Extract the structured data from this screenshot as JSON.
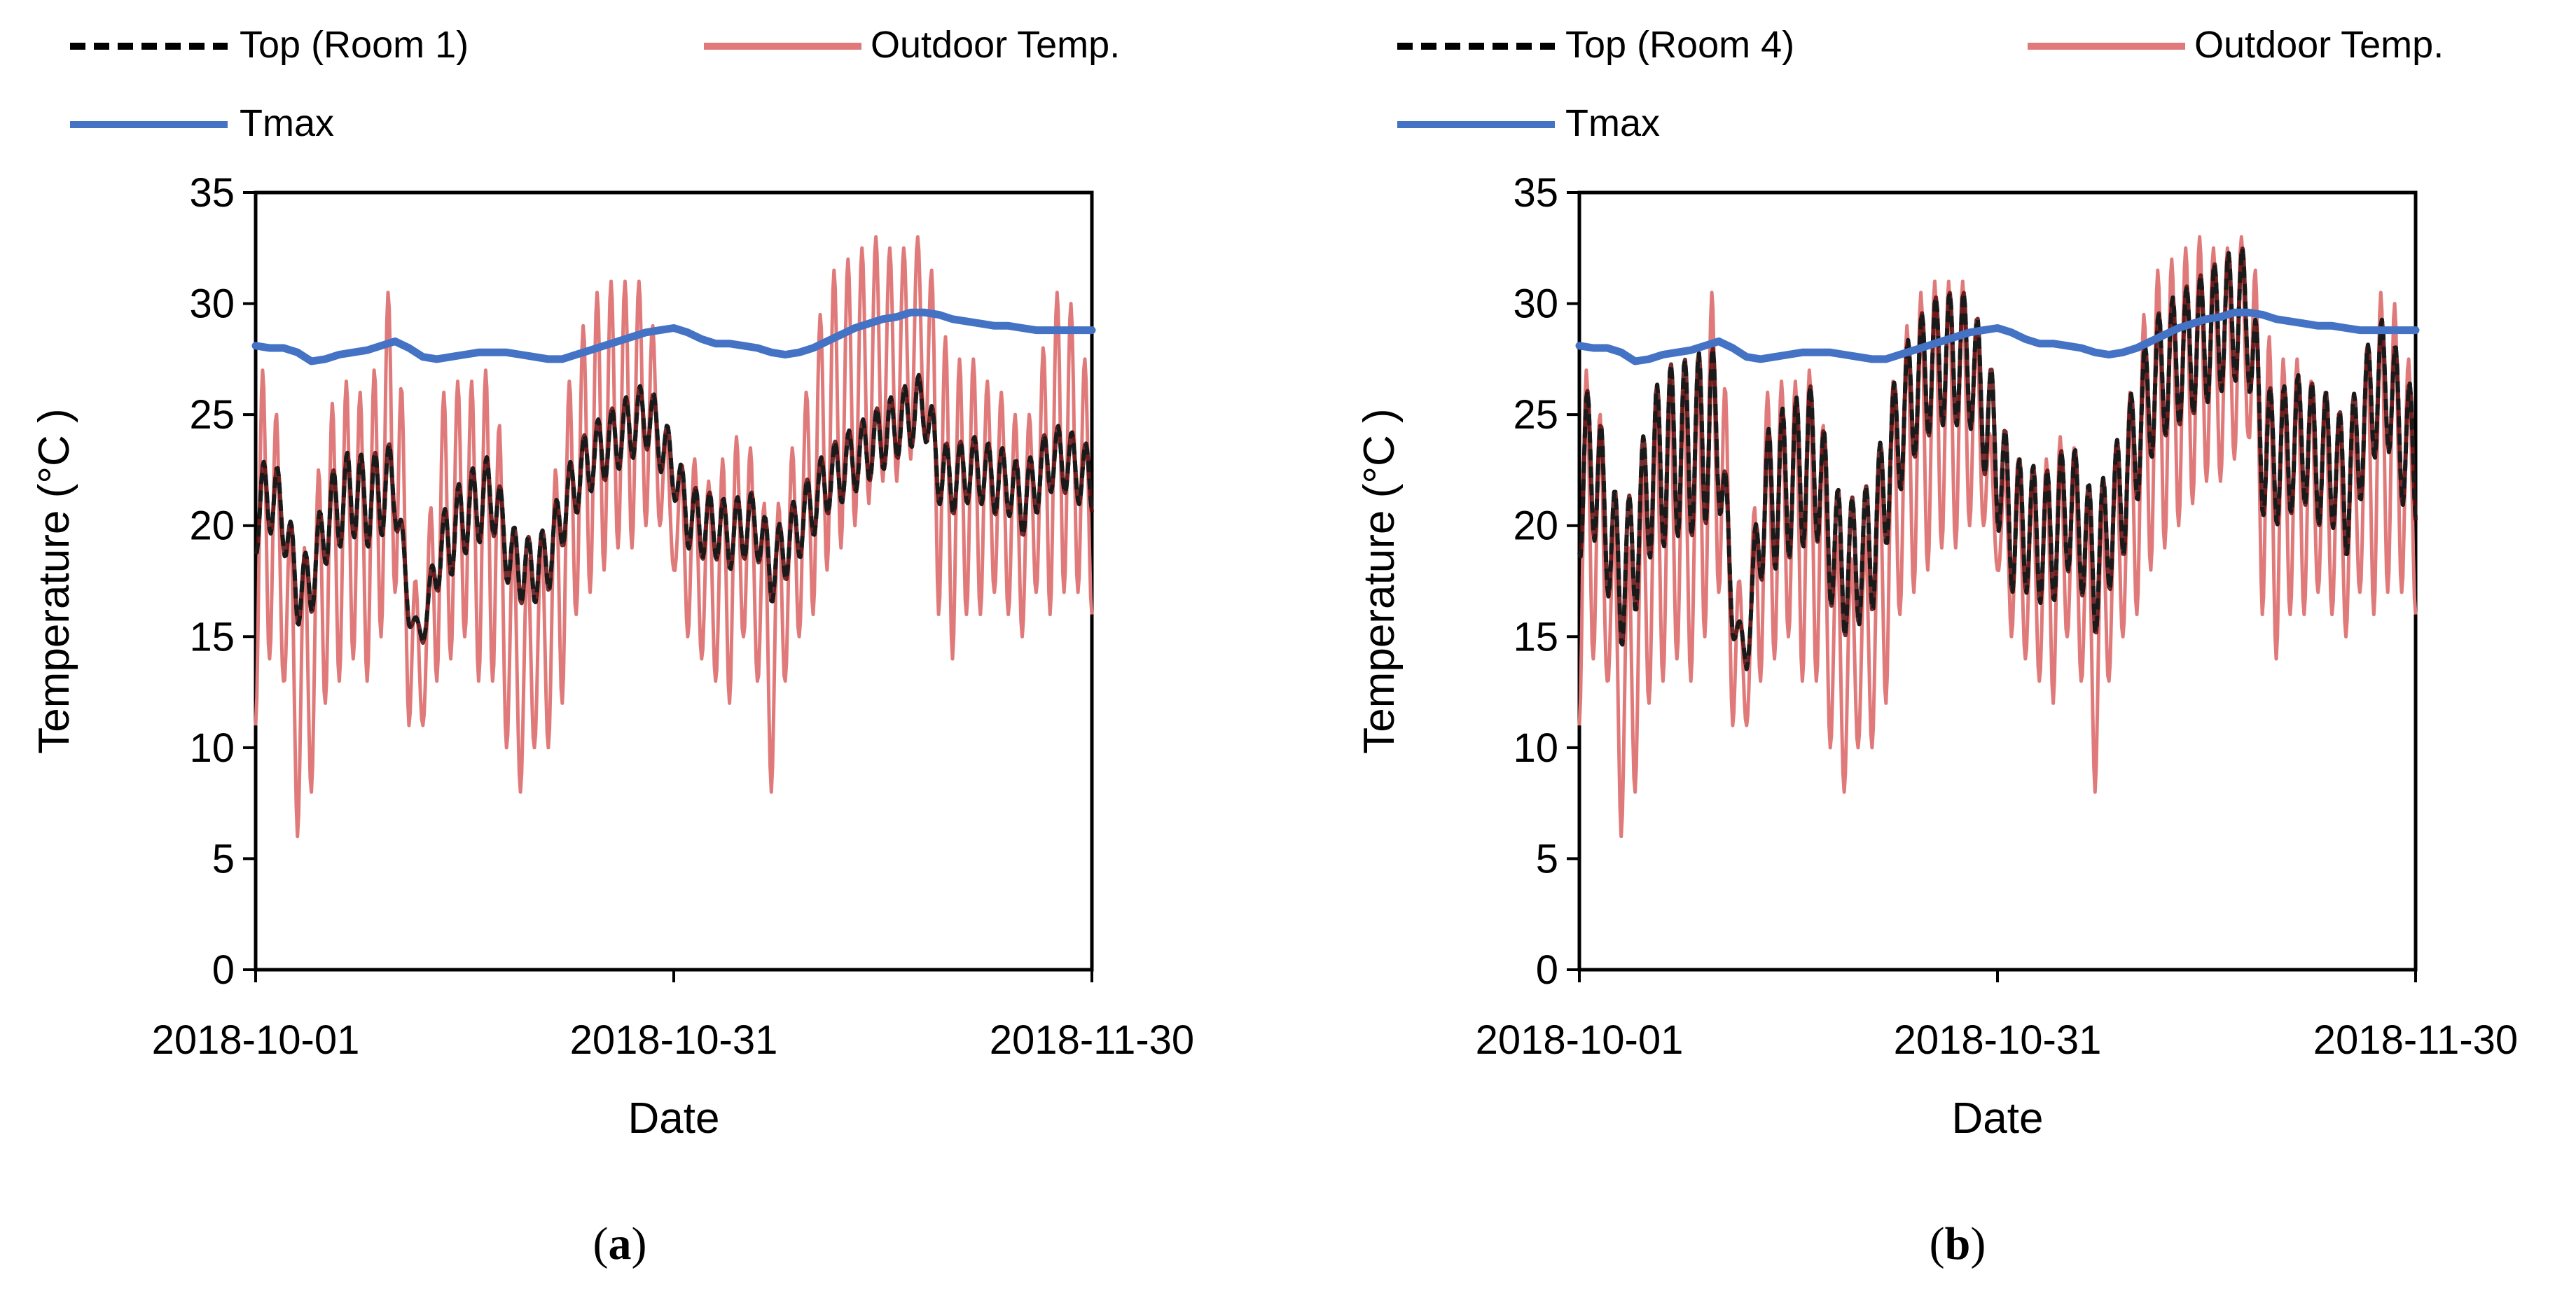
{
  "colors": {
    "top": "#1a1a1a",
    "top_dark": "#5a0a0a",
    "outdoor": "#e07a7a",
    "tmax": "#4472c4",
    "axis": "#000000"
  },
  "chart_data": [
    {
      "type": "line",
      "panel_label": "a",
      "xlabel": "Date",
      "ylabel": "Temperature (°C )",
      "ylim": [
        0,
        35
      ],
      "yticks": [
        "0",
        "5",
        "10",
        "15",
        "20",
        "25",
        "30",
        "35"
      ],
      "xlim_days": [
        0,
        60
      ],
      "xticks": [
        {
          "day": 0,
          "label": "2018-10-01"
        },
        {
          "day": 30,
          "label": "2018-10-31"
        },
        {
          "day": 60,
          "label": "2018-11-30"
        }
      ],
      "legend": {
        "placement": "top",
        "entries": [
          {
            "key": "top",
            "label": "Top (Room 1)"
          },
          {
            "key": "outdoor",
            "label": "Outdoor Temp."
          },
          {
            "key": "tmax",
            "label": "Tmax"
          }
        ]
      },
      "series": [
        {
          "name": "Top (Room 1)",
          "key": "top",
          "style": "dashed",
          "x_days": [
            0,
            1,
            2,
            3,
            4,
            5,
            6,
            7,
            8,
            9,
            10,
            11,
            12,
            13,
            14,
            15,
            16,
            17,
            18,
            19,
            20,
            21,
            22,
            23,
            24,
            25,
            26,
            27,
            28,
            29,
            30,
            31,
            32,
            33,
            34,
            35,
            36,
            37,
            38,
            39,
            40,
            41,
            42,
            43,
            44,
            45,
            46,
            47,
            48,
            49,
            50,
            51,
            52,
            53,
            54,
            55,
            56,
            57,
            58,
            59,
            60
          ],
          "mean": [
            20.5,
            21.5,
            20.5,
            17.0,
            17.5,
            20.0,
            21.0,
            21.5,
            21.0,
            21.5,
            22.0,
            16.0,
            15.0,
            18.5,
            19.5,
            20.5,
            21.0,
            21.5,
            19.0,
            18.0,
            18.0,
            18.5,
            20.5,
            22.0,
            23.0,
            23.5,
            24.0,
            24.5,
            25.0,
            24.0,
            22.5,
            20.5,
            20.0,
            20.0,
            19.5,
            20.0,
            20.0,
            18.0,
            19.0,
            20.0,
            21.0,
            22.0,
            22.5,
            23.0,
            23.5,
            24.0,
            24.5,
            25.0,
            25.5,
            22.5,
            22.0,
            22.5,
            22.5,
            22.0,
            22.0,
            21.0,
            22.0,
            23.0,
            23.0,
            22.5,
            22.0
          ],
          "amplitude": [
            1.8,
            1.8,
            1.6,
            1.5,
            1.5,
            1.8,
            2.0,
            2.0,
            2.0,
            2.0,
            1.8,
            0.5,
            0.3,
            1.5,
            1.8,
            1.8,
            1.8,
            1.8,
            1.5,
            1.5,
            1.5,
            1.5,
            1.5,
            1.5,
            1.5,
            1.5,
            1.5,
            1.5,
            1.5,
            1.5,
            1.2,
            1.5,
            1.5,
            1.5,
            1.5,
            1.5,
            1.5,
            1.5,
            1.5,
            1.5,
            1.5,
            1.5,
            1.5,
            1.5,
            1.5,
            1.5,
            1.5,
            1.5,
            1.5,
            1.5,
            1.5,
            1.5,
            1.5,
            1.5,
            1.5,
            1.5,
            1.5,
            1.5,
            1.5,
            1.5,
            1.5
          ]
        },
        {
          "name": "Outdoor Temp.",
          "key": "outdoor",
          "style": "solid",
          "x_days": [
            0,
            1,
            2,
            3,
            4,
            5,
            6,
            7,
            8,
            9,
            10,
            11,
            12,
            13,
            14,
            15,
            16,
            17,
            18,
            19,
            20,
            21,
            22,
            23,
            24,
            25,
            26,
            27,
            28,
            29,
            30,
            31,
            32,
            33,
            34,
            35,
            36,
            37,
            38,
            39,
            40,
            41,
            42,
            43,
            44,
            45,
            46,
            47,
            48,
            49,
            50,
            51,
            52,
            53,
            54,
            55,
            56,
            57,
            58,
            59,
            60
          ],
          "min": [
            11,
            14,
            13,
            6,
            8,
            12,
            13,
            14,
            13,
            15,
            17,
            11,
            11,
            13,
            14,
            15,
            13,
            13,
            10,
            8,
            10,
            10,
            12,
            16,
            17,
            18,
            19,
            19,
            20,
            20,
            18,
            15,
            14,
            13,
            12,
            15,
            13,
            8,
            13,
            15,
            16,
            18,
            19,
            20,
            21,
            22,
            22,
            23,
            24,
            16,
            14,
            16,
            16,
            17,
            16,
            15,
            17,
            16,
            17,
            17,
            16
          ],
          "max": [
            26,
            28,
            22,
            18,
            20,
            25,
            26,
            27,
            25,
            29,
            32,
            20,
            15,
            26,
            26,
            27,
            26,
            28,
            21,
            18,
            19,
            20,
            25,
            28,
            30,
            31,
            31,
            31,
            31,
            27,
            21,
            24,
            22,
            22,
            24,
            24,
            23,
            19,
            23,
            24,
            28,
            31,
            32,
            32,
            33,
            33,
            32,
            33,
            33,
            30,
            27,
            28,
            27,
            26,
            26,
            24,
            26,
            30,
            31,
            29,
            26
          ]
        },
        {
          "name": "Tmax",
          "key": "tmax",
          "style": "solid",
          "x_days": [
            0,
            1,
            2,
            3,
            4,
            5,
            6,
            7,
            8,
            9,
            10,
            11,
            12,
            13,
            14,
            15,
            16,
            17,
            18,
            19,
            20,
            21,
            22,
            23,
            24,
            25,
            26,
            27,
            28,
            29,
            30,
            31,
            32,
            33,
            34,
            35,
            36,
            37,
            38,
            39,
            40,
            41,
            42,
            43,
            44,
            45,
            46,
            47,
            48,
            49,
            50,
            51,
            52,
            53,
            54,
            55,
            56,
            57,
            58,
            59,
            60
          ],
          "values": [
            28.1,
            28.0,
            28.0,
            27.8,
            27.4,
            27.5,
            27.7,
            27.8,
            27.9,
            28.1,
            28.3,
            28.0,
            27.6,
            27.5,
            27.6,
            27.7,
            27.8,
            27.8,
            27.8,
            27.7,
            27.6,
            27.5,
            27.5,
            27.7,
            27.9,
            28.1,
            28.3,
            28.5,
            28.7,
            28.8,
            28.9,
            28.7,
            28.4,
            28.2,
            28.2,
            28.1,
            28.0,
            27.8,
            27.7,
            27.8,
            28.0,
            28.3,
            28.6,
            28.9,
            29.1,
            29.3,
            29.4,
            29.6,
            29.6,
            29.5,
            29.3,
            29.2,
            29.1,
            29.0,
            29.0,
            28.9,
            28.8,
            28.8,
            28.8,
            28.8,
            28.8
          ]
        }
      ]
    },
    {
      "type": "line",
      "panel_label": "b",
      "xlabel": "Date",
      "ylabel": "Temperature (°C )",
      "ylim": [
        0,
        35
      ],
      "yticks": [
        "0",
        "5",
        "10",
        "15",
        "20",
        "25",
        "30",
        "35"
      ],
      "xlim_days": [
        0,
        60
      ],
      "xticks": [
        {
          "day": 0,
          "label": "2018-10-01"
        },
        {
          "day": 30,
          "label": "2018-10-31"
        },
        {
          "day": 60,
          "label": "2018-11-30"
        }
      ],
      "legend": {
        "placement": "top",
        "entries": [
          {
            "key": "top",
            "label": "Top (Room 4)"
          },
          {
            "key": "outdoor",
            "label": "Outdoor Temp."
          },
          {
            "key": "tmax",
            "label": "Tmax"
          }
        ]
      },
      "series": [
        {
          "name": "Top (Room 4)",
          "key": "top",
          "style": "dashed",
          "x_days": [
            0,
            1,
            2,
            3,
            4,
            5,
            6,
            7,
            8,
            9,
            10,
            11,
            12,
            13,
            14,
            15,
            16,
            17,
            18,
            19,
            20,
            21,
            22,
            23,
            24,
            25,
            26,
            27,
            28,
            29,
            30,
            31,
            32,
            33,
            34,
            35,
            36,
            37,
            38,
            39,
            40,
            41,
            42,
            43,
            44,
            45,
            46,
            47,
            48,
            49,
            50,
            51,
            52,
            53,
            54,
            55,
            56,
            57,
            58,
            59,
            60
          ],
          "mean": [
            22.0,
            23.0,
            20.0,
            17.5,
            19.0,
            22.0,
            23.0,
            23.5,
            23.5,
            24.0,
            24.5,
            16.0,
            14.0,
            20.5,
            21.5,
            22.0,
            22.5,
            23.0,
            19.5,
            18.0,
            18.5,
            19.0,
            22.0,
            24.5,
            26.0,
            27.0,
            27.5,
            27.5,
            27.5,
            25.5,
            23.0,
            20.0,
            20.0,
            19.5,
            19.5,
            21.0,
            20.0,
            18.0,
            20.0,
            21.5,
            24.0,
            26.0,
            27.0,
            27.5,
            28.0,
            28.5,
            29.0,
            29.5,
            29.5,
            23.5,
            23.0,
            23.5,
            24.0,
            23.0,
            23.0,
            21.5,
            24.0,
            26.0,
            26.5,
            24.0,
            23.0
          ],
          "amplitude": [
            3.5,
            3.5,
            3.0,
            3.0,
            3.0,
            3.5,
            4.0,
            4.0,
            4.0,
            4.0,
            3.5,
            1.0,
            0.5,
            3.0,
            3.5,
            3.5,
            3.5,
            3.5,
            3.0,
            3.0,
            3.0,
            3.0,
            3.0,
            3.0,
            3.0,
            3.0,
            3.0,
            3.0,
            3.0,
            3.0,
            3.0,
            3.0,
            3.0,
            3.0,
            3.0,
            3.0,
            3.0,
            3.0,
            3.0,
            3.0,
            3.0,
            3.0,
            3.0,
            3.0,
            3.0,
            3.0,
            3.0,
            3.0,
            3.0,
            3.0,
            3.0,
            3.0,
            3.0,
            3.0,
            3.0,
            3.0,
            3.0,
            3.0,
            3.0,
            3.0,
            3.0
          ]
        },
        {
          "name": "Outdoor Temp.",
          "key": "outdoor",
          "style": "solid",
          "x_days": [
            0,
            1,
            2,
            3,
            4,
            5,
            6,
            7,
            8,
            9,
            10,
            11,
            12,
            13,
            14,
            15,
            16,
            17,
            18,
            19,
            20,
            21,
            22,
            23,
            24,
            25,
            26,
            27,
            28,
            29,
            30,
            31,
            32,
            33,
            34,
            35,
            36,
            37,
            38,
            39,
            40,
            41,
            42,
            43,
            44,
            45,
            46,
            47,
            48,
            49,
            50,
            51,
            52,
            53,
            54,
            55,
            56,
            57,
            58,
            59,
            60
          ],
          "min": [
            11,
            14,
            13,
            6,
            8,
            12,
            13,
            14,
            13,
            15,
            17,
            11,
            11,
            13,
            14,
            15,
            13,
            13,
            10,
            8,
            10,
            10,
            12,
            16,
            17,
            18,
            19,
            19,
            20,
            20,
            18,
            15,
            14,
            13,
            12,
            15,
            13,
            8,
            13,
            15,
            16,
            18,
            19,
            20,
            21,
            22,
            22,
            23,
            24,
            16,
            14,
            16,
            16,
            17,
            16,
            15,
            17,
            16,
            17,
            17,
            16
          ],
          "max": [
            26,
            28,
            22,
            18,
            20,
            25,
            26,
            27,
            25,
            29,
            32,
            20,
            15,
            26,
            26,
            27,
            26,
            28,
            21,
            18,
            19,
            20,
            25,
            28,
            30,
            31,
            31,
            31,
            31,
            27,
            21,
            24,
            22,
            22,
            24,
            24,
            23,
            19,
            23,
            24,
            28,
            31,
            32,
            32,
            33,
            33,
            32,
            33,
            33,
            30,
            27,
            28,
            27,
            26,
            26,
            24,
            26,
            30,
            31,
            29,
            26
          ]
        },
        {
          "name": "Tmax",
          "key": "tmax",
          "style": "solid",
          "x_days": [
            0,
            1,
            2,
            3,
            4,
            5,
            6,
            7,
            8,
            9,
            10,
            11,
            12,
            13,
            14,
            15,
            16,
            17,
            18,
            19,
            20,
            21,
            22,
            23,
            24,
            25,
            26,
            27,
            28,
            29,
            30,
            31,
            32,
            33,
            34,
            35,
            36,
            37,
            38,
            39,
            40,
            41,
            42,
            43,
            44,
            45,
            46,
            47,
            48,
            49,
            50,
            51,
            52,
            53,
            54,
            55,
            56,
            57,
            58,
            59,
            60
          ],
          "values": [
            28.1,
            28.0,
            28.0,
            27.8,
            27.4,
            27.5,
            27.7,
            27.8,
            27.9,
            28.1,
            28.3,
            28.0,
            27.6,
            27.5,
            27.6,
            27.7,
            27.8,
            27.8,
            27.8,
            27.7,
            27.6,
            27.5,
            27.5,
            27.7,
            27.9,
            28.1,
            28.3,
            28.5,
            28.7,
            28.8,
            28.9,
            28.7,
            28.4,
            28.2,
            28.2,
            28.1,
            28.0,
            27.8,
            27.7,
            27.8,
            28.0,
            28.3,
            28.6,
            28.9,
            29.1,
            29.3,
            29.4,
            29.6,
            29.6,
            29.5,
            29.3,
            29.2,
            29.1,
            29.0,
            29.0,
            28.9,
            28.8,
            28.8,
            28.8,
            28.8,
            28.8
          ]
        }
      ]
    }
  ]
}
